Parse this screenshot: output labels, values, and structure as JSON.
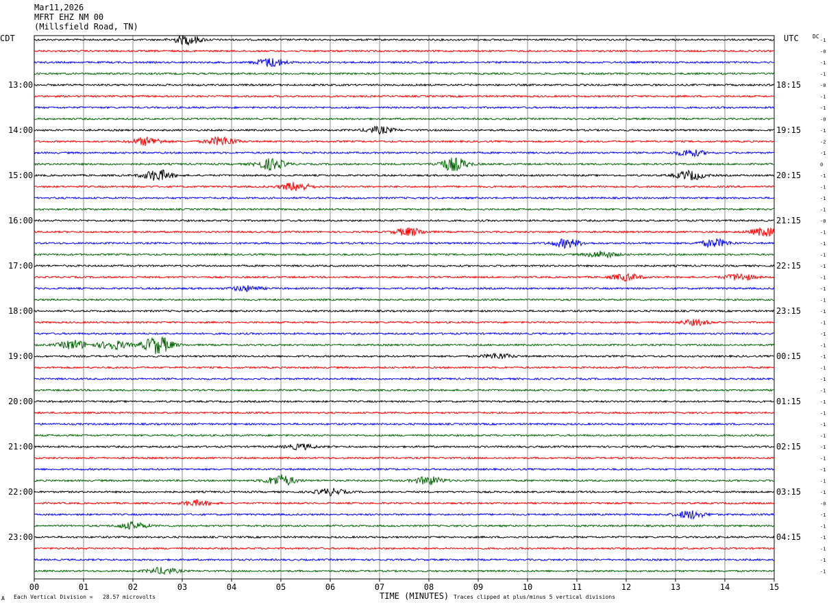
{
  "header": {
    "date": "Mar11,2026",
    "station": "MFRT EHZ NM 00",
    "location": "(Millsfield Road, TN)"
  },
  "left_timezone": "CDT",
  "right_timezone": "UTC",
  "dc_label": "DC",
  "footer": {
    "scale_note": "Each Vertical Division =   28.57 microvolts",
    "clip_note": "Traces clipped at plus/minus 5 vertical divisions",
    "mark": "A"
  },
  "chart_data": {
    "type": "line",
    "xlabel": "TIME (MINUTES)",
    "xlim": [
      0,
      15
    ],
    "x_ticks": [
      "00",
      "01",
      "02",
      "03",
      "04",
      "05",
      "06",
      "07",
      "08",
      "09",
      "10",
      "11",
      "12",
      "13",
      "14",
      "15"
    ],
    "trace_colors": [
      "#000000",
      "#ff0000",
      "#0000ff",
      "#006400"
    ],
    "traces_per_hour": 4,
    "trace_count": 48,
    "left_hour_labels": [
      "13:00",
      "14:00",
      "15:00",
      "16:00",
      "17:00",
      "18:00",
      "19:00",
      "20:00",
      "21:00",
      "22:00",
      "23:00"
    ],
    "right_hour_labels": [
      "18:15",
      "19:15",
      "20:15",
      "21:15",
      "22:15",
      "23:15",
      "00:15",
      "01:15",
      "02:15",
      "03:15",
      "04:15"
    ],
    "dc_offsets": [
      "-1",
      "-0",
      "-1",
      "-1",
      "-0",
      "-1",
      "-1",
      "-0",
      "-1",
      "-2",
      "-1",
      "0",
      "-1",
      "-1",
      "-1",
      "-1",
      "-0",
      "-1",
      "-1",
      "-1",
      "-1",
      "-1",
      "-1",
      "-1",
      "-1",
      "-1",
      "-1",
      "-1",
      "-1",
      "-1",
      "-1",
      "-1",
      "-1",
      "-1",
      "-1",
      "-1",
      "-1",
      "-1",
      "-1",
      "-1",
      "-1",
      "-0",
      "-1",
      "-1",
      "-1",
      "-1",
      "-1",
      "-1"
    ],
    "events": [
      {
        "trace": 0,
        "minute": 3.1,
        "amplitude": 2.0
      },
      {
        "trace": 2,
        "minute": 4.8,
        "amplitude": 2.0
      },
      {
        "trace": 8,
        "minute": 7.0,
        "amplitude": 1.5
      },
      {
        "trace": 9,
        "minute": 2.3,
        "amplitude": 1.8
      },
      {
        "trace": 9,
        "minute": 3.8,
        "amplitude": 2.0
      },
      {
        "trace": 10,
        "minute": 13.3,
        "amplitude": 1.5
      },
      {
        "trace": 11,
        "minute": 4.8,
        "amplitude": 2.5
      },
      {
        "trace": 11,
        "minute": 8.5,
        "amplitude": 3.0
      },
      {
        "trace": 12,
        "minute": 2.5,
        "amplitude": 2.5
      },
      {
        "trace": 12,
        "minute": 13.3,
        "amplitude": 2.0
      },
      {
        "trace": 13,
        "minute": 5.3,
        "amplitude": 2.0
      },
      {
        "trace": 17,
        "minute": 7.6,
        "amplitude": 1.8
      },
      {
        "trace": 17,
        "minute": 14.8,
        "amplitude": 1.8
      },
      {
        "trace": 18,
        "minute": 10.8,
        "amplitude": 2.0
      },
      {
        "trace": 18,
        "minute": 13.8,
        "amplitude": 1.8
      },
      {
        "trace": 19,
        "minute": 11.5,
        "amplitude": 1.5
      },
      {
        "trace": 21,
        "minute": 12.0,
        "amplitude": 1.5
      },
      {
        "trace": 21,
        "minute": 14.3,
        "amplitude": 1.5
      },
      {
        "trace": 22,
        "minute": 4.3,
        "amplitude": 1.2
      },
      {
        "trace": 25,
        "minute": 13.4,
        "amplitude": 1.2
      },
      {
        "trace": 27,
        "minute": 0.8,
        "amplitude": 2.0
      },
      {
        "trace": 27,
        "minute": 1.6,
        "amplitude": 2.0
      },
      {
        "trace": 27,
        "minute": 2.5,
        "amplitude": 4.0
      },
      {
        "trace": 28,
        "minute": 9.4,
        "amplitude": 1.2
      },
      {
        "trace": 36,
        "minute": 5.4,
        "amplitude": 1.2
      },
      {
        "trace": 39,
        "minute": 5.0,
        "amplitude": 2.5
      },
      {
        "trace": 39,
        "minute": 8.0,
        "amplitude": 1.8
      },
      {
        "trace": 40,
        "minute": 6.0,
        "amplitude": 1.5
      },
      {
        "trace": 41,
        "minute": 3.3,
        "amplitude": 1.2
      },
      {
        "trace": 42,
        "minute": 13.3,
        "amplitude": 1.8
      },
      {
        "trace": 43,
        "minute": 2.0,
        "amplitude": 1.5
      },
      {
        "trace": 47,
        "minute": 2.6,
        "amplitude": 1.5
      }
    ]
  }
}
